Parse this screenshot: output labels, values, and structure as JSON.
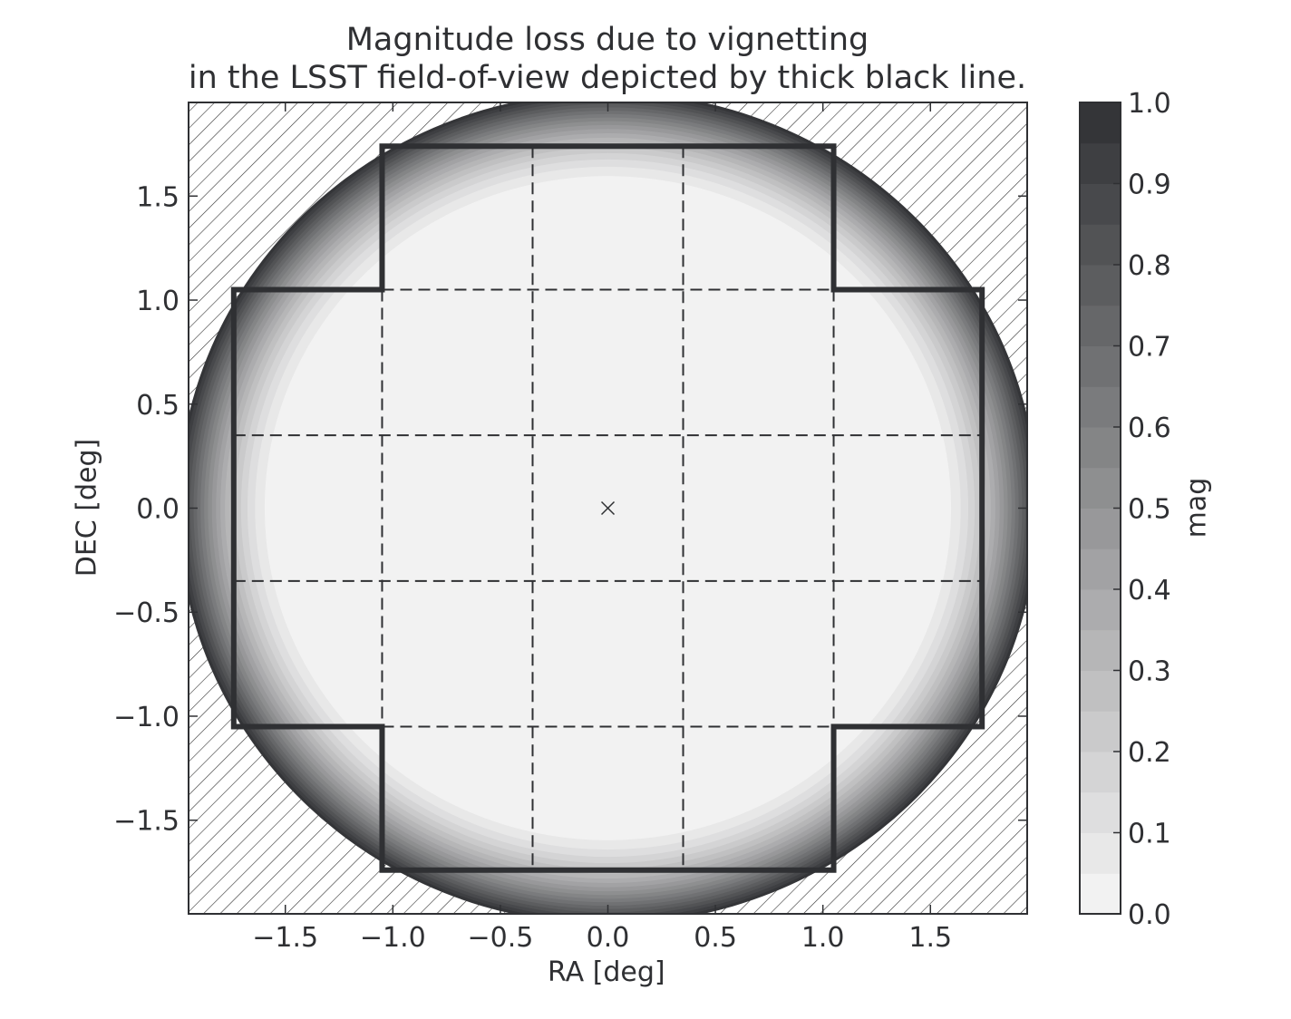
{
  "chart_data": {
    "type": "heatmap",
    "title_lines": [
      "Magnitude loss due to vignetting",
      "in the LSST field-of-view depicted by thick black line."
    ],
    "xlabel": "RA [deg]",
    "ylabel": "DEC [deg]",
    "xlim": [
      -1.95,
      1.95
    ],
    "ylim": [
      -1.95,
      1.95
    ],
    "xticks": [
      -1.5,
      -1.0,
      -0.5,
      0.0,
      0.5,
      1.0,
      1.5
    ],
    "yticks": [
      -1.5,
      -1.0,
      -0.5,
      0.0,
      0.5,
      1.0,
      1.5
    ],
    "xtick_labels": [
      "−1.5",
      "−1.0",
      "−0.5",
      "0.0",
      "0.5",
      "1.0",
      "1.5"
    ],
    "ytick_labels": [
      "−1.5",
      "−1.0",
      "−0.5",
      "0.0",
      "0.5",
      "1.0",
      "1.5"
    ],
    "field_radius_deg": 2.0,
    "vignetting_core_radius_deg": 1.5,
    "field_outline_deg": [
      [
        -1.05,
        1.74
      ],
      [
        1.05,
        1.74
      ],
      [
        1.05,
        1.05
      ],
      [
        1.74,
        1.05
      ],
      [
        1.74,
        -1.05
      ],
      [
        1.05,
        -1.05
      ],
      [
        1.05,
        -1.74
      ],
      [
        -1.05,
        -1.74
      ],
      [
        -1.05,
        -1.05
      ],
      [
        -1.74,
        -1.05
      ],
      [
        -1.74,
        1.05
      ],
      [
        -1.05,
        1.05
      ]
    ],
    "raft_grid_x_deg": [
      -1.05,
      -0.35,
      0.35,
      1.05
    ],
    "raft_grid_y_deg": [
      -1.05,
      -0.35,
      0.35,
      1.05
    ],
    "center_marker_deg": [
      0.0,
      0.0
    ],
    "colorbar": {
      "label": "mag",
      "min": 0.0,
      "max": 1.0,
      "levels": 20,
      "ticks": [
        0.0,
        0.1,
        0.2,
        0.3,
        0.4,
        0.5,
        0.6,
        0.7,
        0.8,
        0.9,
        1.0
      ],
      "tick_labels": [
        "0.0",
        "0.1",
        "0.2",
        "0.3",
        "0.4",
        "0.5",
        "0.6",
        "0.7",
        "0.8",
        "0.9",
        "1.0"
      ],
      "color_low": "#f7f7f7",
      "color_high": "#2f3033"
    },
    "outside_pattern": "diagonal-hatch"
  }
}
